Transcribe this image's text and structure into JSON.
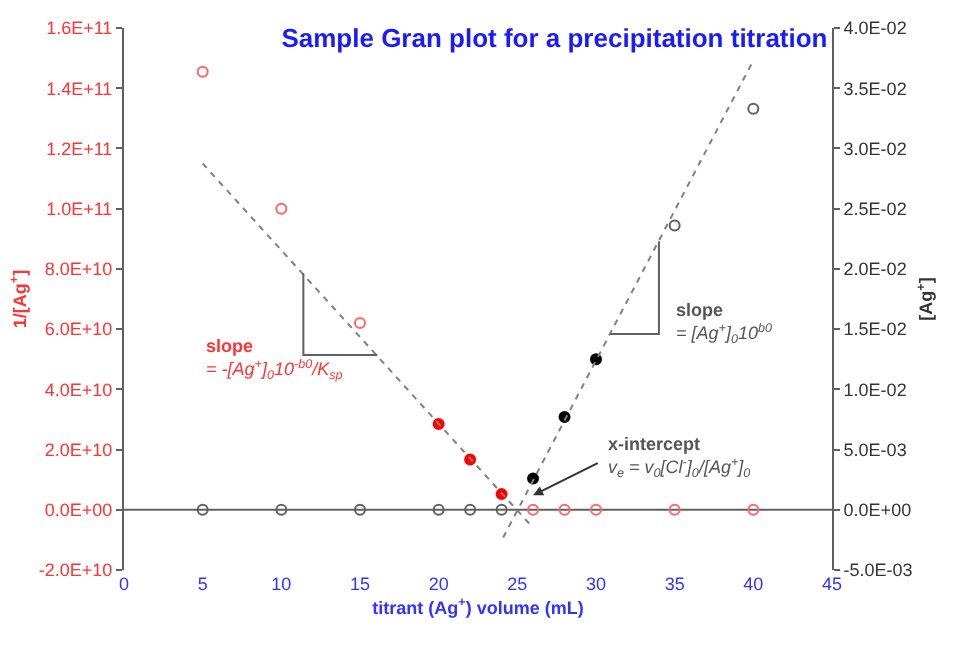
{
  "chart_data": {
    "type": "scatter",
    "title": "Sample Gran plot for a precipitation titration",
    "xlabel": "titrant (Ag$^{+}$) volume (mL)",
    "ylabel": "1/[Ag$^{+}$]",
    "y2label": "[Ag$^{+}$]",
    "xlim": [
      0,
      45
    ],
    "xticks": [
      0,
      5,
      10,
      15,
      20,
      25,
      30,
      35,
      40,
      45
    ],
    "ylim": [
      -20000000000.0,
      160000000000.0
    ],
    "yticks": [
      {
        "value": -20000000000.0,
        "label": "-2.0E+10"
      },
      {
        "value": 0,
        "label": "0.0E+00"
      },
      {
        "value": 20000000000.0,
        "label": "2.0E+10"
      },
      {
        "value": 40000000000.0,
        "label": "4.0E+10"
      },
      {
        "value": 60000000000.0,
        "label": "6.0E+10"
      },
      {
        "value": 80000000000.0,
        "label": "8.0E+10"
      },
      {
        "value": 100000000000.0,
        "label": "1.0E+11"
      },
      {
        "value": 120000000000.0,
        "label": "1.2E+11"
      },
      {
        "value": 140000000000.0,
        "label": "1.4E+11"
      },
      {
        "value": 160000000000.0,
        "label": "1.6E+11"
      }
    ],
    "y2lim": [
      -0.005,
      0.04
    ],
    "y2ticks": [
      {
        "value": -0.005,
        "label": "-5.0E-03"
      },
      {
        "value": 0,
        "label": "0.0E+00"
      },
      {
        "value": 0.005,
        "label": "5.0E-03"
      },
      {
        "value": 0.01,
        "label": "1.0E-02"
      },
      {
        "value": 0.015,
        "label": "1.5E-02"
      },
      {
        "value": 0.02,
        "label": "2.0E-02"
      },
      {
        "value": 0.025,
        "label": "2.5E-02"
      },
      {
        "value": 0.03,
        "label": "3.0E-02"
      },
      {
        "value": 0.035,
        "label": "3.5E-02"
      },
      {
        "value": 0.04,
        "label": "4.0E-02"
      }
    ],
    "ref_lines": [
      {
        "axis": "y",
        "value": 0,
        "color": "#606060"
      }
    ],
    "series": [
      {
        "marker": "circle-open",
        "color": "#ff6666",
        "x": [
          5,
          10,
          15
        ],
        "values": [
          145500000000.0,
          100000000000.0,
          62000000000.0
        ]
      },
      {
        "marker": "circle",
        "color": "#ff0000",
        "x": [
          20,
          22,
          24
        ],
        "values": [
          28500000000.0,
          16700000000.0,
          5200000000.0
        ]
      },
      {
        "marker": "circle-open",
        "color": "#ff6666",
        "x": [
          26,
          28,
          30,
          35,
          40
        ],
        "values": [
          0,
          0,
          0,
          0,
          0
        ]
      },
      {
        "marker": "circle-open",
        "color": "#606060",
        "axis": "y2",
        "x": [
          5,
          10,
          15,
          20,
          22,
          24
        ],
        "values": [
          0,
          0,
          0,
          0,
          0,
          0
        ]
      },
      {
        "marker": "circle",
        "color": "#000000",
        "axis": "y2",
        "x": [
          26,
          28,
          30
        ],
        "values": [
          0.0026,
          0.0077,
          0.0125
        ]
      },
      {
        "marker": "circle-open",
        "color": "#606060",
        "axis": "y2",
        "x": [
          35,
          40
        ],
        "values": [
          0.0236,
          0.0333
        ]
      },
      {
        "type": "line",
        "line_style": "dotted",
        "marker": "none",
        "color": "#808080",
        "x": [
          5,
          26
        ],
        "values": [
          115000000000.0,
          -6000000000.0
        ]
      },
      {
        "type": "line",
        "line_style": "dotted",
        "marker": "none",
        "color": "#808080",
        "axis": "y2",
        "x": [
          24.1,
          40
        ],
        "values": [
          -0.0023,
          0.0373
        ]
      }
    ],
    "annotations": [
      "slope\n= -[Ag$^{+}$]$_{0}$10$^{-b0}$/K$_{sp}$",
      "slope\n= [Ag$^{+}$]$_{0}$10$^{b0}$",
      "x-intercept\nv$_{e}$ = v$_{0}$[Cl$^{-}$]$_{0}$/[Ag$^{+}$]$_{0}$"
    ]
  }
}
